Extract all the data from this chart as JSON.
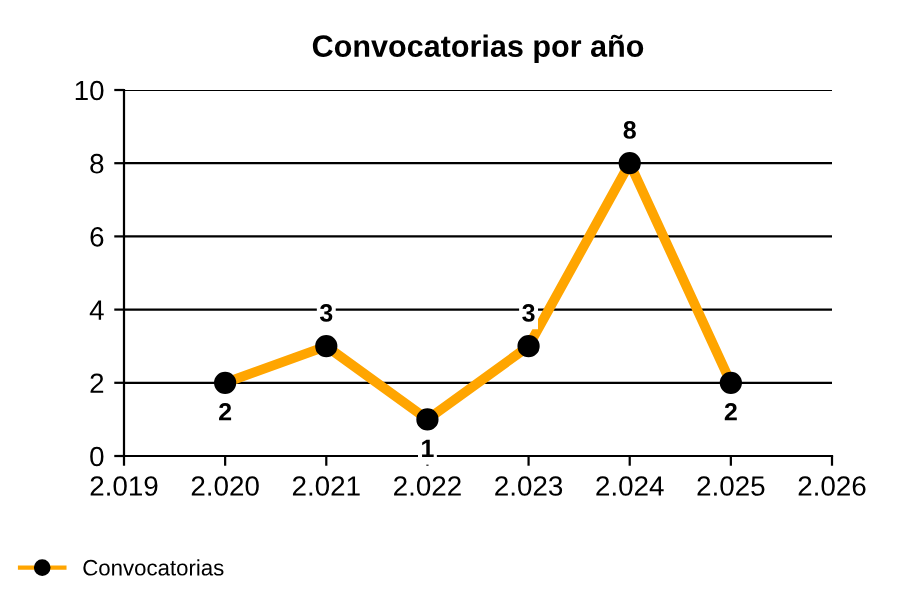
{
  "chart_data": {
    "type": "line",
    "title": "Convocatorias por año",
    "x": [
      2020,
      2021,
      2022,
      2023,
      2024,
      2025
    ],
    "series": [
      {
        "name": "Convocatorias",
        "color": "#ffa500",
        "values": [
          2,
          3,
          1,
          3,
          8,
          2
        ]
      }
    ],
    "xlim": [
      2019,
      2026
    ],
    "xticks": [
      {
        "value": 2019,
        "label": "2.019"
      },
      {
        "value": 2020,
        "label": "2.020"
      },
      {
        "value": 2021,
        "label": "2.021"
      },
      {
        "value": 2022,
        "label": "2.022"
      },
      {
        "value": 2023,
        "label": "2.023"
      },
      {
        "value": 2024,
        "label": "2.024"
      },
      {
        "value": 2025,
        "label": "2.025"
      },
      {
        "value": 2026,
        "label": "2.026"
      }
    ],
    "ylim": [
      0,
      10
    ],
    "yticks": [
      0,
      2,
      4,
      6,
      8,
      10
    ],
    "grid": "y",
    "legend": "bottom left",
    "marker": "circle",
    "line_style": "solid",
    "data_labels": true
  }
}
